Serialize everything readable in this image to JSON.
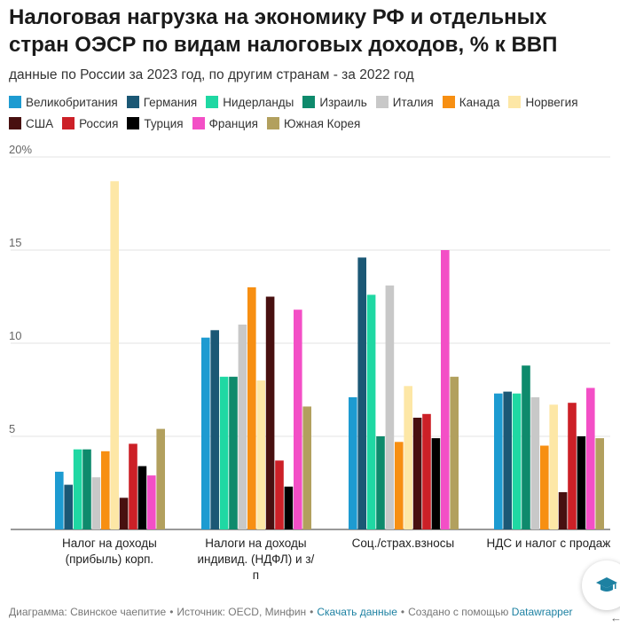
{
  "title": "Налоговая нагрузка на экономику РФ и отдельных стран ОЭСР по видам налоговых доходов, % к ВВП",
  "subtitle": "данные по России за 2023 год, по другим странам - за 2022 год",
  "footer": {
    "source_text": "Диаграмма: Свинское чаепитие",
    "source2_text": "Источник: OECD, Минфин",
    "download_link": "Скачать данные",
    "created_text": "Создано с помощью",
    "tool_link": "Datawrapper"
  },
  "chart_data": {
    "type": "bar",
    "title": "Налоговая нагрузка на экономику РФ и отдельных стран ОЭСР по видам налоговых доходов, % к ВВП",
    "subtitle": "данные по России за 2023 год, по другим странам - за 2022 год",
    "categories": [
      "Налог на доходы (прибыль) корп.",
      "Налоги на доходы индивид. (НДФЛ) и з/п",
      "Соц./страх.взносы",
      "НДС и налог с продаж"
    ],
    "category_lines": [
      [
        "Налог на доходы",
        "(прибыль) корп."
      ],
      [
        "Налоги на доходы",
        "индивид. (НДФЛ) и з/",
        "п"
      ],
      [
        "Соц./страх.взносы"
      ],
      [
        "НДС и налог с продаж"
      ]
    ],
    "ylim": [
      0,
      20
    ],
    "yticks": [
      0,
      5,
      10,
      15,
      20
    ],
    "ytick_labels": [
      "",
      "5",
      "10",
      "15",
      "20%"
    ],
    "grid": true,
    "legend_position": "top",
    "series": [
      {
        "name": "Великобритания",
        "color": "#1d9bd1",
        "values": [
          3.1,
          10.3,
          7.1,
          7.3
        ]
      },
      {
        "name": "Германия",
        "color": "#1b5875",
        "values": [
          2.4,
          10.7,
          14.6,
          7.4
        ]
      },
      {
        "name": "Нидерланды",
        "color": "#1fd8a3",
        "values": [
          4.3,
          8.2,
          12.6,
          7.3
        ]
      },
      {
        "name": "Израиль",
        "color": "#0e8a6c",
        "values": [
          4.3,
          8.2,
          5.0,
          8.8
        ]
      },
      {
        "name": "Италия",
        "color": "#c8c8c8",
        "values": [
          2.8,
          11.0,
          13.1,
          7.1
        ]
      },
      {
        "name": "Канада",
        "color": "#f78f12",
        "values": [
          4.2,
          13.0,
          4.7,
          4.5
        ]
      },
      {
        "name": "Норвегия",
        "color": "#fde7a6",
        "values": [
          18.7,
          8.0,
          7.7,
          6.7
        ]
      },
      {
        "name": "США",
        "color": "#481010",
        "values": [
          1.7,
          12.5,
          6.0,
          2.0
        ]
      },
      {
        "name": "Россия",
        "color": "#cc2027",
        "values": [
          4.6,
          3.7,
          6.2,
          6.8
        ]
      },
      {
        "name": "Турция",
        "color": "#000000",
        "values": [
          3.4,
          2.3,
          4.9,
          5.0
        ]
      },
      {
        "name": "Франция",
        "color": "#f34fc6",
        "values": [
          2.9,
          11.8,
          15.0,
          7.6
        ]
      },
      {
        "name": "Южная Корея",
        "color": "#b2a05e",
        "values": [
          5.4,
          6.6,
          8.2,
          4.9
        ]
      }
    ]
  }
}
